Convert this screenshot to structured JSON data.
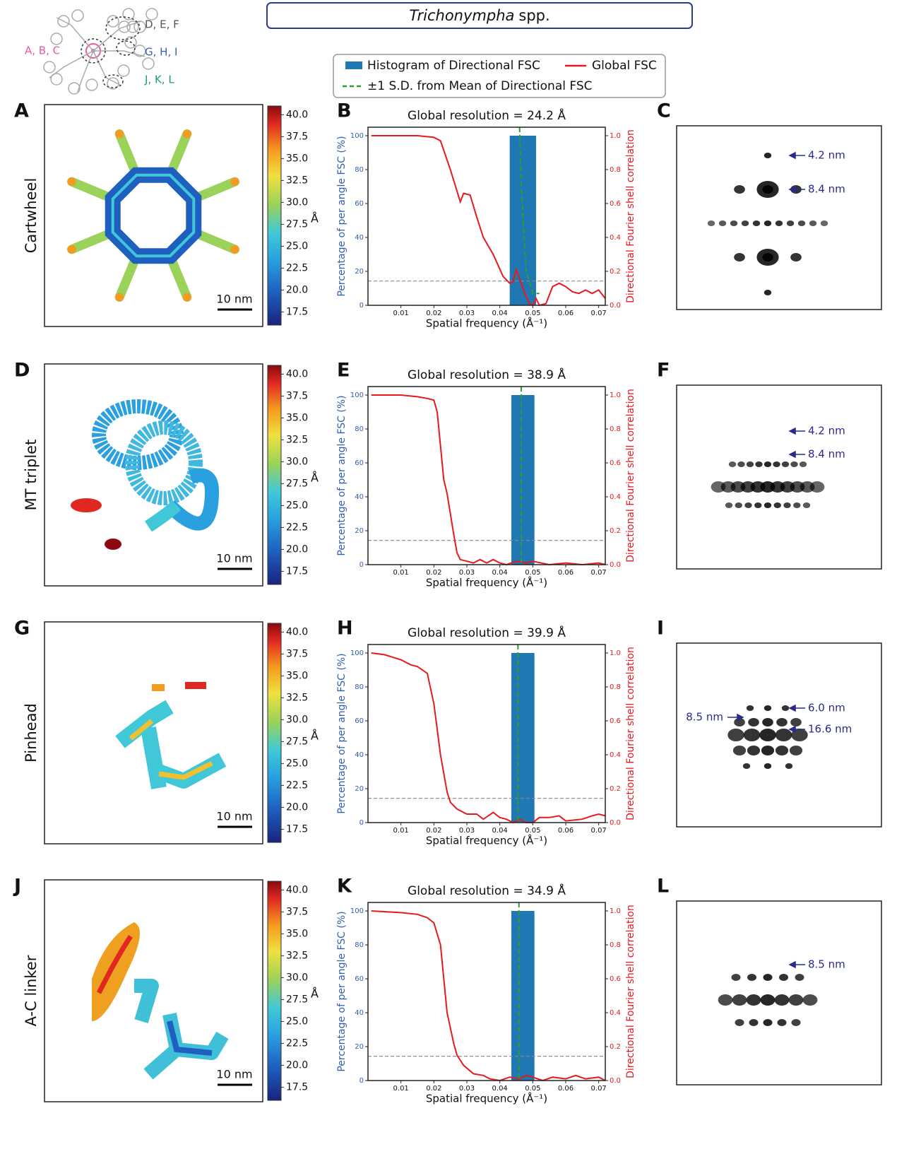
{
  "header": {
    "title_italic": "Trichonympha",
    "title_rest": "spp."
  },
  "schematic": {
    "labels": [
      "A, B, C",
      "D, E, F",
      "G, H, I",
      "J, K, L"
    ]
  },
  "panels": [
    {
      "letters": [
        "A",
        "B",
        "C"
      ],
      "label": "Cartwheel",
      "scalebar": "10 nm",
      "annotations": [
        "4.2 nm",
        "8.4 nm"
      ],
      "colorbar": {
        "clim": [
          16,
          41
        ],
        "unit": "Å",
        "ticks": [
          {
            "value": 40,
            "label": "40.0"
          },
          37.5,
          {
            "value": 35,
            "label": "35.0"
          },
          32.5,
          {
            "value": 30,
            "label": "30.0"
          },
          27.5,
          {
            "value": 25,
            "label": "25.0"
          },
          22.5,
          {
            "value": 20,
            "label": "20.0"
          },
          17.5
        ]
      }
    },
    {
      "letters": [
        "D",
        "E",
        "F"
      ],
      "label": "MT triplet",
      "scalebar": "10 nm",
      "annotations": [
        "4.2 nm",
        "8.4 nm"
      ],
      "colorbar": {
        "clim": [
          16,
          41
        ],
        "unit": "Å",
        "ticks": [
          {
            "value": 40,
            "label": "40.0"
          },
          37.5,
          {
            "value": 35,
            "label": "35.0"
          },
          32.5,
          {
            "value": 30,
            "label": "30.0"
          },
          27.5,
          {
            "value": 25,
            "label": "25.0"
          },
          22.5,
          {
            "value": 20,
            "label": "20.0"
          },
          17.5
        ]
      }
    },
    {
      "letters": [
        "G",
        "H",
        "I"
      ],
      "label": "Pinhead",
      "scalebar": "10 nm",
      "annotations": [
        "6.0 nm",
        "8.5 nm",
        "16.6 nm"
      ],
      "colorbar": {
        "clim": [
          16,
          41
        ],
        "unit": "Å",
        "ticks": [
          {
            "value": 40,
            "label": "40.0"
          },
          37.5,
          {
            "value": 35,
            "label": "35.0"
          },
          32.5,
          {
            "value": 30,
            "label": "30.0"
          },
          27.5,
          {
            "value": 25,
            "label": "25.0"
          },
          22.5,
          {
            "value": 20,
            "label": "20.0"
          },
          17.5
        ]
      }
    },
    {
      "letters": [
        "J",
        "K",
        "L"
      ],
      "label": "A-C linker",
      "scalebar": "10 nm",
      "annotations": [
        "8.5 nm"
      ],
      "colorbar": {
        "clim": [
          16,
          41
        ],
        "unit": "Å",
        "ticks": [
          {
            "value": 40,
            "label": "40.0"
          },
          37.5,
          {
            "value": 35,
            "label": "35.0"
          },
          32.5,
          {
            "value": 30,
            "label": "30.0"
          },
          27.5,
          {
            "value": 25,
            "label": "25.0"
          },
          22.5,
          {
            "value": 20,
            "label": "20.0"
          },
          17.5
        ]
      }
    }
  ],
  "chart_data": [
    {
      "type": "combo",
      "title": "Global resolution = 24.2 Å",
      "x_label": "Spatial frequency (Å⁻¹)",
      "y_label": "Percentage of per angle FSC (%)",
      "y2_label": "Directional Fourier shell correlation",
      "xlim": [
        0,
        0.072
      ],
      "xticks": [
        0.01,
        0.02,
        0.03,
        0.04,
        0.05,
        0.06,
        0.07
      ],
      "ylim": [
        0,
        105
      ],
      "yticks": [
        0,
        20,
        40,
        60,
        80,
        100
      ],
      "y2lim": [
        0,
        1.05
      ],
      "y2ticks": [
        {
          "value": 0,
          "label": "0.0"
        },
        0.2,
        0.4,
        0.6,
        0.8,
        {
          "value": 1,
          "label": "1.0"
        }
      ],
      "threshold": 0.143,
      "threshold_color": "#888888",
      "series": [
        {
          "name": "Histogram of Directional FSC",
          "color": "#1f77b4",
          "bins": [
            0.043,
            0.051
          ],
          "values": [
            100
          ]
        },
        {
          "name": "Global FSC",
          "color": "#e8191c",
          "axis": "y2",
          "x": [
            0.001,
            0.01,
            0.015,
            0.02,
            0.022,
            0.025,
            0.028,
            0.029,
            0.031,
            0.033,
            0.035,
            0.038,
            0.041,
            0.043,
            0.044,
            0.045,
            0.047,
            0.048,
            0.049,
            0.05,
            0.051,
            0.052,
            0.054,
            0.056,
            0.058,
            0.06,
            0.062,
            0.064,
            0.066,
            0.068,
            0.07,
            0.072
          ],
          "values": [
            1.0,
            1.0,
            1.0,
            0.99,
            0.97,
            0.8,
            0.61,
            0.66,
            0.65,
            0.52,
            0.4,
            0.3,
            0.17,
            0.13,
            0.14,
            0.21,
            0.1,
            0.05,
            0.01,
            0.0,
            0.04,
            0.0,
            0.01,
            0.11,
            0.13,
            0.11,
            0.08,
            0.07,
            0.09,
            0.07,
            0.09,
            0.04
          ]
        },
        {
          "name": "±1 S.D. from Mean of Directional FSC",
          "color": "#2ca02c",
          "dashed": true,
          "x": [
            0.046,
            0.0465,
            0.048,
            0.05,
            0.052
          ],
          "values": [
            105,
            70,
            20,
            7,
            7
          ]
        }
      ]
    },
    {
      "type": "combo",
      "title": "Global resolution = 38.9 Å",
      "x_label": "Spatial frequency (Å⁻¹)",
      "y_label": "Percentage of per angle FSC (%)",
      "y2_label": "Directional Fourier shell correlation",
      "xlim": [
        0,
        0.072
      ],
      "xticks": [
        0.01,
        0.02,
        0.03,
        0.04,
        0.05,
        0.06,
        0.07
      ],
      "ylim": [
        0,
        105
      ],
      "yticks": [
        0,
        20,
        40,
        60,
        80,
        100
      ],
      "y2lim": [
        0,
        1.05
      ],
      "y2ticks": [
        {
          "value": 0,
          "label": "0.0"
        },
        0.2,
        0.4,
        0.6,
        0.8,
        {
          "value": 1,
          "label": "1.0"
        }
      ],
      "threshold": 0.143,
      "threshold_color": "#888888",
      "series": [
        {
          "color": "#1f77b4",
          "bins": [
            0.0435,
            0.0505
          ],
          "values": [
            100
          ]
        },
        {
          "color": "#e8191c",
          "axis": "y2",
          "x": [
            0.001,
            0.01,
            0.015,
            0.018,
            0.02,
            0.021,
            0.022,
            0.023,
            0.024,
            0.025,
            0.026,
            0.027,
            0.028,
            0.03,
            0.032,
            0.034,
            0.036,
            0.038,
            0.04,
            0.042,
            0.045,
            0.048,
            0.05,
            0.055,
            0.06,
            0.065,
            0.07,
            0.072
          ],
          "values": [
            1.0,
            1.0,
            0.99,
            0.98,
            0.97,
            0.9,
            0.7,
            0.5,
            0.42,
            0.3,
            0.18,
            0.07,
            0.03,
            0.02,
            0.01,
            0.03,
            0.01,
            0.03,
            0.01,
            0.0,
            0.02,
            0.01,
            0.02,
            0.0,
            0.01,
            0.0,
            0.01,
            0.0
          ]
        },
        {
          "color": "#2ca02c",
          "dashed": true,
          "x": [
            0.0465,
            0.0465
          ],
          "values": [
            105,
            0
          ]
        }
      ]
    },
    {
      "type": "combo",
      "title": "Global resolution = 39.9 Å",
      "x_label": "Spatial frequency (Å⁻¹)",
      "y_label": "Percentage of per angle FSC (%)",
      "y2_label": "Directional Fourier shell correlation",
      "xlim": [
        0,
        0.072
      ],
      "xticks": [
        0.01,
        0.02,
        0.03,
        0.04,
        0.05,
        0.06,
        0.07
      ],
      "ylim": [
        0,
        105
      ],
      "yticks": [
        0,
        20,
        40,
        60,
        80,
        100
      ],
      "y2lim": [
        0,
        1.05
      ],
      "y2ticks": [
        {
          "value": 0,
          "label": "0.0"
        },
        0.2,
        0.4,
        0.6,
        0.8,
        {
          "value": 1,
          "label": "1.0"
        }
      ],
      "threshold": 0.143,
      "threshold_color": "#888888",
      "series": [
        {
          "color": "#1f77b4",
          "bins": [
            0.0435,
            0.0505
          ],
          "values": [
            100
          ]
        },
        {
          "color": "#e8191c",
          "axis": "y2",
          "x": [
            0.001,
            0.005,
            0.01,
            0.013,
            0.015,
            0.018,
            0.02,
            0.022,
            0.024,
            0.025,
            0.027,
            0.03,
            0.033,
            0.035,
            0.038,
            0.04,
            0.042,
            0.044,
            0.046,
            0.048,
            0.05,
            0.052,
            0.055,
            0.058,
            0.06,
            0.065,
            0.068,
            0.07,
            0.072
          ],
          "values": [
            1.0,
            0.99,
            0.96,
            0.93,
            0.92,
            0.88,
            0.7,
            0.4,
            0.18,
            0.12,
            0.08,
            0.05,
            0.05,
            0.02,
            0.06,
            0.03,
            0.02,
            0.0,
            0.02,
            0.0,
            0.0,
            0.03,
            0.03,
            0.04,
            0.01,
            0.02,
            0.04,
            0.05,
            0.04
          ]
        },
        {
          "color": "#2ca02c",
          "dashed": true,
          "x": [
            0.0455,
            0.0455
          ],
          "values": [
            105,
            0
          ]
        }
      ]
    },
    {
      "type": "combo",
      "title": "Global resolution = 34.9 Å",
      "x_label": "Spatial frequency (Å⁻¹)",
      "y_label": "Percentage of per angle FSC (%)",
      "y2_label": "Directional Fourier shell correlation",
      "xlim": [
        0,
        0.072
      ],
      "xticks": [
        0.01,
        0.02,
        0.03,
        0.04,
        0.05,
        0.06,
        0.07
      ],
      "ylim": [
        0,
        105
      ],
      "yticks": [
        0,
        20,
        40,
        60,
        80,
        100
      ],
      "y2lim": [
        0,
        1.05
      ],
      "y2ticks": [
        {
          "value": 0,
          "label": "0.0"
        },
        0.2,
        0.4,
        0.6,
        0.8,
        {
          "value": 1,
          "label": "1.0"
        }
      ],
      "threshold": 0.143,
      "threshold_color": "#888888",
      "series": [
        {
          "color": "#1f77b4",
          "bins": [
            0.0435,
            0.0505
          ],
          "values": [
            100
          ]
        },
        {
          "color": "#e8191c",
          "axis": "y2",
          "x": [
            0.001,
            0.01,
            0.015,
            0.018,
            0.02,
            0.022,
            0.023,
            0.024,
            0.026,
            0.027,
            0.029,
            0.032,
            0.035,
            0.037,
            0.04,
            0.043,
            0.046,
            0.048,
            0.05,
            0.053,
            0.056,
            0.06,
            0.063,
            0.066,
            0.07,
            0.072
          ],
          "values": [
            1.0,
            0.99,
            0.98,
            0.96,
            0.93,
            0.8,
            0.6,
            0.4,
            0.22,
            0.15,
            0.09,
            0.04,
            0.03,
            0.01,
            0.0,
            0.02,
            0.01,
            0.03,
            0.02,
            0.0,
            0.02,
            0.01,
            0.03,
            0.01,
            0.02,
            0.0
          ]
        },
        {
          "color": "#2ca02c",
          "dashed": true,
          "x": [
            0.0458,
            0.0458
          ],
          "values": [
            105,
            0
          ]
        }
      ]
    }
  ]
}
